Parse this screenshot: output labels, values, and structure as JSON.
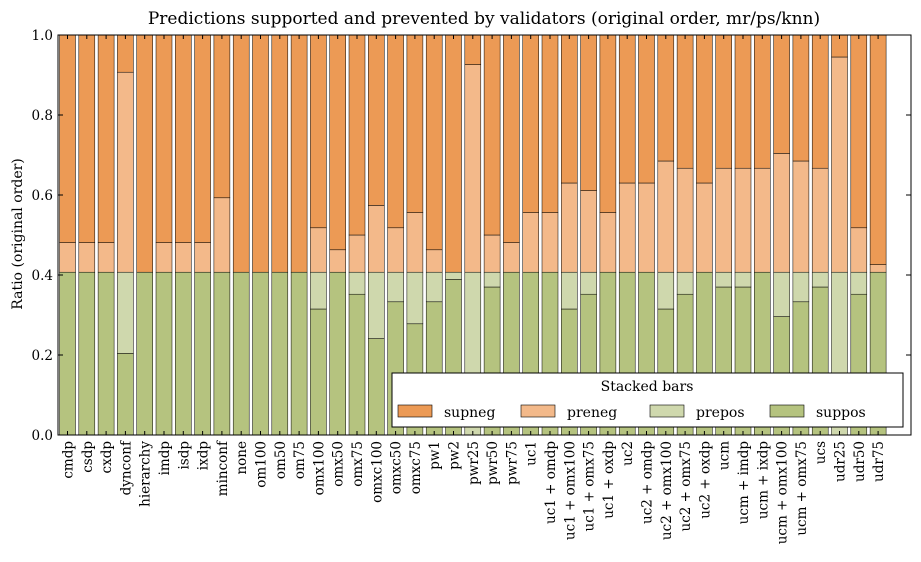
{
  "chart_data": {
    "type": "bar",
    "stacked": true,
    "title": "Predictions supported and prevented by validators (original order, mr/ps/knn)",
    "xlabel": "",
    "ylabel": "Ratio (original order)",
    "ylim": [
      0,
      1.0
    ],
    "yticks": [
      "0.0",
      "0.2",
      "0.4",
      "0.6",
      "0.8",
      "1.0"
    ],
    "grid": false,
    "legend": {
      "title": "Stacked bars",
      "placement": "bottom-right"
    },
    "categories": [
      "cmdp",
      "csdp",
      "cxdp",
      "dynconf",
      "hierarchy",
      "imdp",
      "isdp",
      "ixdp",
      "minconf",
      "none",
      "om100",
      "om50",
      "om75",
      "omx100",
      "omx50",
      "omx75",
      "omxc100",
      "omxc50",
      "omxc75",
      "pw1",
      "pw2",
      "pwr25",
      "pwr50",
      "pwr75",
      "uc1",
      "uc1 + omdp",
      "uc1 + omx100",
      "uc1 + omx75",
      "uc1 + oxdp",
      "uc2",
      "uc2 + omdp",
      "uc2 + omx100",
      "uc2 + omx75",
      "uc2 + oxdp",
      "ucm",
      "ucm + imdp",
      "ucm + ixdp",
      "ucm + omx100",
      "ucm + omx75",
      "ucs",
      "udr25",
      "udr50",
      "udr75"
    ],
    "series": [
      {
        "name": "suppos",
        "color": "#b5c37f",
        "values": [
          0.407,
          0.407,
          0.407,
          0.204,
          0.407,
          0.407,
          0.407,
          0.407,
          0.407,
          0.407,
          0.407,
          0.407,
          0.407,
          0.315,
          0.407,
          0.352,
          0.241,
          0.333,
          0.278,
          0.333,
          0.389,
          0.0,
          0.37,
          0.407,
          0.407,
          0.407,
          0.315,
          0.352,
          0.407,
          0.407,
          0.407,
          0.315,
          0.352,
          0.407,
          0.37,
          0.37,
          0.407,
          0.296,
          0.333,
          0.37,
          0.0,
          0.352,
          0.407
        ]
      },
      {
        "name": "prepos",
        "color": "#cfd8ad",
        "values": [
          0.0,
          0.0,
          0.0,
          0.203,
          0.0,
          0.0,
          0.0,
          0.0,
          0.0,
          0.0,
          0.0,
          0.0,
          0.0,
          0.092,
          0.0,
          0.055,
          0.166,
          0.074,
          0.129,
          0.074,
          0.018,
          0.407,
          0.037,
          0.0,
          0.0,
          0.0,
          0.092,
          0.055,
          0.0,
          0.0,
          0.0,
          0.092,
          0.055,
          0.0,
          0.037,
          0.037,
          0.0,
          0.111,
          0.074,
          0.037,
          0.407,
          0.055,
          0.0
        ]
      },
      {
        "name": "preneg",
        "color": "#f3b98a",
        "values": [
          0.074,
          0.074,
          0.074,
          0.5,
          0.0,
          0.074,
          0.074,
          0.074,
          0.186,
          0.0,
          0.0,
          0.0,
          0.0,
          0.111,
          0.056,
          0.093,
          0.167,
          0.111,
          0.149,
          0.056,
          0.0,
          0.519,
          0.093,
          0.074,
          0.149,
          0.149,
          0.223,
          0.204,
          0.149,
          0.223,
          0.223,
          0.278,
          0.26,
          0.223,
          0.26,
          0.26,
          0.26,
          0.297,
          0.278,
          0.26,
          0.538,
          0.111,
          0.019
        ]
      },
      {
        "name": "supneg",
        "color": "#ec9a55",
        "values": [
          0.519,
          0.519,
          0.519,
          0.093,
          0.593,
          0.519,
          0.519,
          0.519,
          0.407,
          0.593,
          0.593,
          0.593,
          0.593,
          0.482,
          0.537,
          0.5,
          0.426,
          0.482,
          0.444,
          0.537,
          0.593,
          0.074,
          0.5,
          0.519,
          0.444,
          0.444,
          0.37,
          0.389,
          0.444,
          0.37,
          0.37,
          0.315,
          0.333,
          0.37,
          0.333,
          0.333,
          0.333,
          0.296,
          0.315,
          0.333,
          0.055,
          0.482,
          0.574
        ]
      }
    ]
  }
}
